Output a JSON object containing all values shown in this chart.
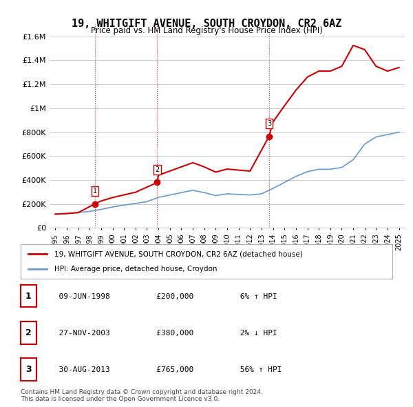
{
  "title": "19, WHITGIFT AVENUE, SOUTH CROYDON, CR2 6AZ",
  "subtitle": "Price paid vs. HM Land Registry's House Price Index (HPI)",
  "title_fontsize": 11,
  "subtitle_fontsize": 9,
  "sale_dates_year": [
    1998.44,
    2003.9,
    2013.66
  ],
  "sale_prices": [
    200000,
    380000,
    765000
  ],
  "sale_labels": [
    "1",
    "2",
    "3"
  ],
  "hpi_years": [
    1995,
    1996,
    1997,
    1998,
    1999,
    2000,
    2001,
    2002,
    2003,
    2004,
    2005,
    2006,
    2007,
    2008,
    2009,
    2010,
    2011,
    2012,
    2013,
    2014,
    2015,
    2016,
    2017,
    2018,
    2019,
    2020,
    2021,
    2022,
    2023,
    2024,
    2025
  ],
  "hpi_values": [
    115000,
    120000,
    128000,
    138000,
    155000,
    175000,
    190000,
    205000,
    220000,
    255000,
    275000,
    295000,
    315000,
    295000,
    270000,
    285000,
    280000,
    275000,
    285000,
    330000,
    380000,
    430000,
    470000,
    490000,
    490000,
    505000,
    570000,
    700000,
    760000,
    780000,
    800000
  ],
  "red_line_years": [
    1995,
    1996,
    1997,
    1998.44,
    1999,
    2000,
    2001,
    2002,
    2003.9,
    2004,
    2005,
    2006,
    2007,
    2008,
    2009,
    2010,
    2011,
    2012,
    2013.66,
    2014,
    2015,
    2016,
    2017,
    2018,
    2019,
    2020,
    2021,
    2022,
    2023,
    2024,
    2025
  ],
  "red_line_values": [
    115000,
    120000,
    128000,
    200000,
    225000,
    254000,
    276000,
    298000,
    380000,
    440000,
    475000,
    510000,
    545000,
    510000,
    466000,
    492000,
    483000,
    475000,
    765000,
    885000,
    1020000,
    1150000,
    1260000,
    1310000,
    1310000,
    1350000,
    1525000,
    1490000,
    1350000,
    1310000,
    1340000
  ],
  "ylim": [
    0,
    1700000
  ],
  "xlim": [
    1994.5,
    2025.5
  ],
  "yticks": [
    0,
    200000,
    400000,
    600000,
    800000,
    1000000,
    1200000,
    1400000,
    1600000
  ],
  "ytick_labels": [
    "£0",
    "£200K",
    "£400K",
    "£600K",
    "£800K",
    "£1M",
    "£1.2M",
    "£1.4M",
    "£1.6M"
  ],
  "xtick_years": [
    1995,
    1996,
    1997,
    1998,
    1999,
    2000,
    2001,
    2002,
    2003,
    2004,
    2005,
    2006,
    2007,
    2008,
    2009,
    2010,
    2011,
    2012,
    2013,
    2014,
    2015,
    2016,
    2017,
    2018,
    2019,
    2020,
    2021,
    2022,
    2023,
    2024,
    2025
  ],
  "red_color": "#cc0000",
  "blue_color": "#6699cc",
  "grid_color": "#cccccc",
  "bg_color": "#ffffff",
  "legend_entries": [
    "19, WHITGIFT AVENUE, SOUTH CROYDON, CR2 6AZ (detached house)",
    "HPI: Average price, detached house, Croydon"
  ],
  "table_rows": [
    [
      "1",
      "09-JUN-1998",
      "£200,000",
      "6% ↑ HPI"
    ],
    [
      "2",
      "27-NOV-2003",
      "£380,000",
      "2% ↓ HPI"
    ],
    [
      "3",
      "30-AUG-2013",
      "£765,000",
      "56% ↑ HPI"
    ]
  ],
  "footer_text": "Contains HM Land Registry data © Crown copyright and database right 2024.\nThis data is licensed under the Open Government Licence v3.0.",
  "dashed_color": "#cc0000"
}
